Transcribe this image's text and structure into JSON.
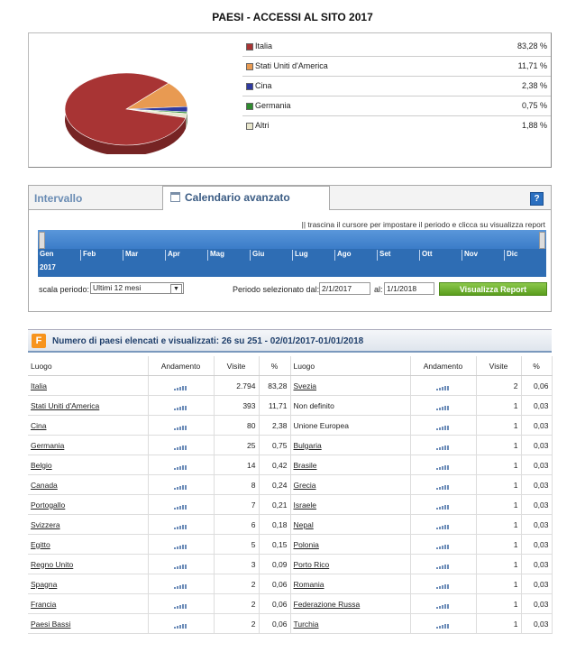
{
  "title": "PAESI - ACCESSI AL SITO 2017",
  "pie": {
    "legend": [
      {
        "name": "Italia",
        "value": "83,28 %",
        "pct": 83.28,
        "color": "#a83434"
      },
      {
        "name": "Stati Uniti d'America",
        "value": "11,71 %",
        "pct": 11.71,
        "color": "#e89a52"
      },
      {
        "name": "Cina",
        "value": "2,38 %",
        "pct": 2.38,
        "color": "#2f3aa0"
      },
      {
        "name": "Germania",
        "value": "0,75 %",
        "pct": 0.75,
        "color": "#2e8a2e"
      },
      {
        "name": "Altri",
        "value": "1,88 %",
        "pct": 1.88,
        "color": "#e8e6cc"
      }
    ]
  },
  "calendar": {
    "tab_interval": "Intervallo",
    "tab_calendar": "Calendario avanzato",
    "help": "?",
    "hint": "|| trascina il cursore per impostare il periodo e clicca su visualizza report",
    "months": [
      "Gen",
      "Feb",
      "Mar",
      "Apr",
      "Mag",
      "Giu",
      "Lug",
      "Ago",
      "Set",
      "Ott",
      "Nov",
      "Dic"
    ],
    "year": "2017",
    "scale_label": "scala periodo:",
    "scale_value": "Ultimi 12 mesi",
    "period_label": "Periodo selezionato dal:",
    "date_from": "2/1/2017",
    "al_label": "al:",
    "date_to": "1/1/2018",
    "button": "Visualizza Report"
  },
  "table": {
    "icon": "F",
    "title": "Numero di paesi elencati e visualizzati: 26 su 251 - 02/01/2017-01/01/2018",
    "headers": [
      "Luogo",
      "Andamento",
      "Visite",
      "%",
      "Luogo",
      "Andamento",
      "Visite",
      "%"
    ],
    "rows": [
      {
        "l": "Italia",
        "lv": "2.794",
        "lp": "83,28",
        "r": "Svezia",
        "rv": "2",
        "rp": "0,06",
        "llink": true,
        "rlink": true
      },
      {
        "l": "Stati Uniti d'America",
        "lv": "393",
        "lp": "11,71",
        "r": "Non definito",
        "rv": "1",
        "rp": "0,03",
        "llink": true,
        "rlink": false
      },
      {
        "l": "Cina",
        "lv": "80",
        "lp": "2,38",
        "r": "Unione Europea",
        "rv": "1",
        "rp": "0,03",
        "llink": true,
        "rlink": false
      },
      {
        "l": "Germania",
        "lv": "25",
        "lp": "0,75",
        "r": "Bulgaria",
        "rv": "1",
        "rp": "0,03",
        "llink": true,
        "rlink": true
      },
      {
        "l": "Belgio",
        "lv": "14",
        "lp": "0,42",
        "r": "Brasile",
        "rv": "1",
        "rp": "0,03",
        "llink": true,
        "rlink": true
      },
      {
        "l": "Canada",
        "lv": "8",
        "lp": "0,24",
        "r": "Grecia",
        "rv": "1",
        "rp": "0,03",
        "llink": true,
        "rlink": true
      },
      {
        "l": "Portogallo",
        "lv": "7",
        "lp": "0,21",
        "r": "Israele",
        "rv": "1",
        "rp": "0,03",
        "llink": true,
        "rlink": true
      },
      {
        "l": "Svizzera",
        "lv": "6",
        "lp": "0,18",
        "r": "Nepal",
        "rv": "1",
        "rp": "0,03",
        "llink": true,
        "rlink": true
      },
      {
        "l": "Egitto",
        "lv": "5",
        "lp": "0,15",
        "r": "Polonia",
        "rv": "1",
        "rp": "0,03",
        "llink": true,
        "rlink": true
      },
      {
        "l": "Regno Unito",
        "lv": "3",
        "lp": "0,09",
        "r": "Porto Rico",
        "rv": "1",
        "rp": "0,03",
        "llink": true,
        "rlink": true
      },
      {
        "l": "Spagna",
        "lv": "2",
        "lp": "0,06",
        "r": "Romania",
        "rv": "1",
        "rp": "0,03",
        "llink": true,
        "rlink": true
      },
      {
        "l": "Francia",
        "lv": "2",
        "lp": "0,06",
        "r": "Federazione Russa",
        "rv": "1",
        "rp": "0,03",
        "llink": true,
        "rlink": true
      },
      {
        "l": "Paesi Bassi",
        "lv": "2",
        "lp": "0,06",
        "r": "Turchia",
        "rv": "1",
        "rp": "0,03",
        "llink": true,
        "rlink": true
      }
    ]
  }
}
